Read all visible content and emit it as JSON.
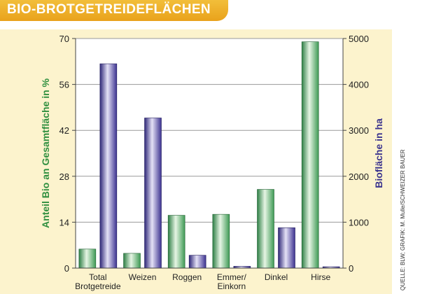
{
  "chart_data": {
    "type": "bar",
    "title": "BIO-BROTGETREIDEFLÄCHEN",
    "categories": [
      {
        "line1": "Total",
        "line2": "Brotgetreide"
      },
      {
        "line1": "Weizen",
        "line2": ""
      },
      {
        "line1": "Roggen",
        "line2": ""
      },
      {
        "line1": "Emmer/",
        "line2": "Einkorn"
      },
      {
        "line1": "Dinkel",
        "line2": ""
      },
      {
        "line1": "Hirse",
        "line2": ""
      }
    ],
    "series": [
      {
        "name": "Anteil Bio an Gesamtfläche in %",
        "axis": "left",
        "color": "#4fa15f",
        "values": [
          5.8,
          4.5,
          16.1,
          16.4,
          24.0,
          69.0
        ]
      },
      {
        "name": "Biofläche in ha",
        "axis": "right",
        "color": "#4b3f99",
        "values": [
          4450,
          3270,
          280,
          40,
          880,
          30
        ]
      }
    ],
    "ylabel_left": "Anteil Bio an Gesamtfläche in %",
    "ylabel_right": "Biofläche in ha",
    "ylim_left": [
      0,
      70
    ],
    "ylim_right": [
      0,
      5000
    ],
    "yticks_left": [
      0,
      14,
      28,
      42,
      56,
      70
    ],
    "yticks_right": [
      0,
      1000,
      2000,
      3000,
      4000,
      5000
    ],
    "source": "QUELLE: BLW; GRAFIK: M. Mulle/SCHWEIZER BAUER"
  }
}
